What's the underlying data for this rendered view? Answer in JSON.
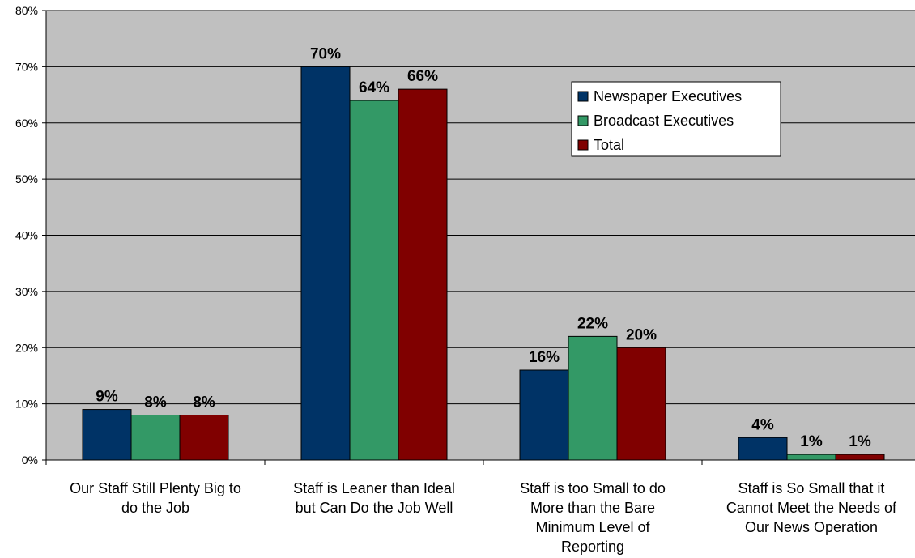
{
  "chart_data": {
    "type": "bar",
    "title": "",
    "xlabel": "",
    "ylabel": "",
    "ylim": [
      0,
      80
    ],
    "yticks": [
      0,
      10,
      20,
      30,
      40,
      50,
      60,
      70,
      80
    ],
    "ytick_labels": [
      "0%",
      "10%",
      "20%",
      "30%",
      "40%",
      "50%",
      "60%",
      "70%",
      "80%"
    ],
    "grid": true,
    "legend_position": "top-right",
    "categories": [
      [
        "Our Staff Still Plenty Big to",
        "do the Job"
      ],
      [
        "Staff is Leaner than Ideal",
        "but Can Do the Job Well"
      ],
      [
        "Staff is too Small to do",
        "More than the Bare",
        "Minimum Level of",
        "Reporting"
      ],
      [
        "Staff is So Small that it",
        "Cannot Meet the Needs of",
        "Our News Operation"
      ]
    ],
    "series": [
      {
        "name": "Newspaper Executives",
        "color": "#003366",
        "values": [
          9,
          70,
          16,
          4
        ],
        "labels": [
          "9%",
          "70%",
          "16%",
          "4%"
        ]
      },
      {
        "name": "Broadcast Executives",
        "color": "#339966",
        "values": [
          8,
          64,
          22,
          1
        ],
        "labels": [
          "8%",
          "64%",
          "22%",
          "1%"
        ]
      },
      {
        "name": "Total",
        "color": "#800000",
        "values": [
          8,
          66,
          20,
          1
        ],
        "labels": [
          "8%",
          "66%",
          "20%",
          "1%"
        ]
      }
    ],
    "colors": {
      "plot_background": "#c0c0c0",
      "gridline": "#000000",
      "bar_outline": "#000000"
    }
  }
}
